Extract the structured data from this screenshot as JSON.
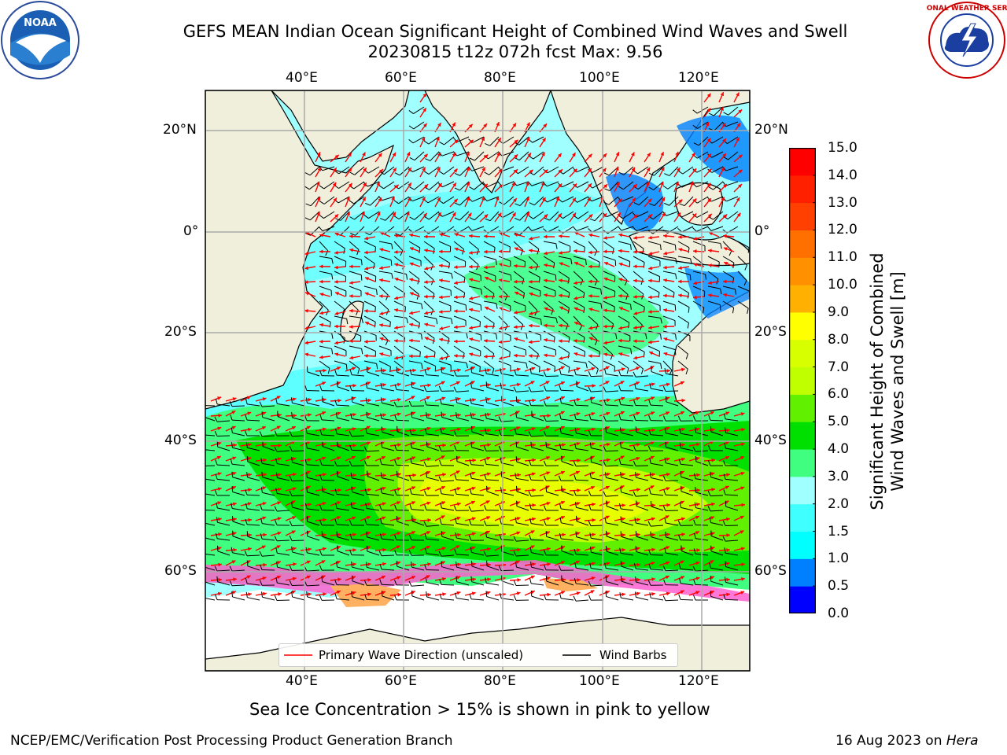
{
  "title_line1": "GEFS MEAN Indian Ocean Significant Height of Combined Wind Waves and Swell",
  "title_line2": "20230815 t12z 072h fcst   Max: 9.56",
  "map": {
    "lon_labels": [
      "40°E",
      "60°E",
      "80°E",
      "100°E",
      "120°E"
    ],
    "lat_labels": [
      "20°N",
      "0°",
      "20°S",
      "40°S",
      "60°S"
    ],
    "legend": {
      "wave_dir_label": "Primary Wave Direction (unscaled)",
      "wind_barb_label": "Wind Barbs",
      "wave_dir_color": "#ff0000",
      "wind_barb_color": "#000000"
    }
  },
  "colorbar": {
    "ticks": [
      "15.0",
      "14.0",
      "13.0",
      "12.0",
      "11.0",
      "10.0",
      "9.0",
      "8.0",
      "7.0",
      "6.0",
      "5.0",
      "4.0",
      "3.0",
      "2.0",
      "1.5",
      "1.0",
      "0.5",
      "0.0"
    ],
    "colors_bottom_to_top": [
      "#0000ff",
      "#0080ff",
      "#00ffff",
      "#40ffff",
      "#a0ffff",
      "#40ff80",
      "#00e000",
      "#60f000",
      "#c0ff00",
      "#d8ff00",
      "#ffff00",
      "#ffb000",
      "#ff9000",
      "#ff7000",
      "#ff4000",
      "#ff2000",
      "#ff0000"
    ],
    "title_line1": "Significant Height of Combined",
    "title_line2": "Wind Waves and Swell [m]"
  },
  "sea_ice_note": "Sea Ice Concentration > 15% is shown in pink to yellow",
  "footer_left": "NCEP/EMC/Verification Post Processing Product Generation Branch",
  "footer_right_date": "16 Aug 2023 on ",
  "footer_right_machine": "Hera",
  "logos": {
    "noaa_text": "NOAA",
    "nws_text": "NATIONAL WEATHER SERVICE"
  }
}
